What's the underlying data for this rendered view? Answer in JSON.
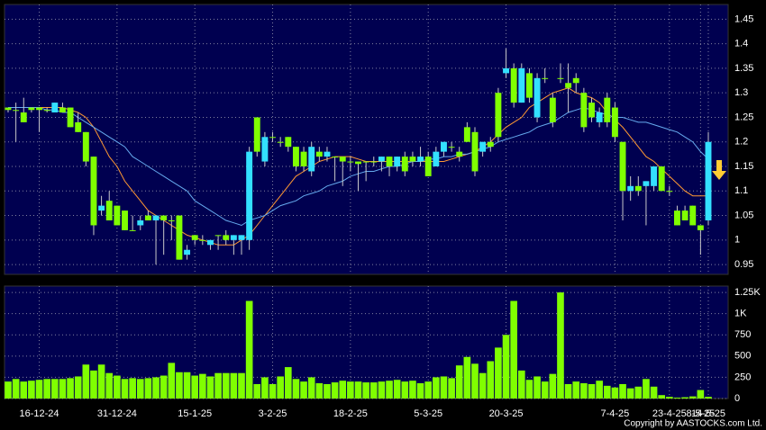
{
  "chart_data": {
    "type": "candlestick",
    "categories": [
      null,
      null,
      null,
      null,
      "16-12-24",
      null,
      null,
      null,
      null,
      null,
      null,
      null,
      null,
      null,
      "31-12-24",
      null,
      null,
      null,
      null,
      null,
      null,
      null,
      null,
      null,
      "15-1-25",
      null,
      null,
      null,
      null,
      null,
      null,
      null,
      null,
      null,
      "3-2-25",
      null,
      null,
      null,
      null,
      null,
      null,
      null,
      null,
      null,
      "18-2-25",
      null,
      null,
      null,
      null,
      null,
      null,
      null,
      null,
      null,
      "5-3-25",
      null,
      null,
      null,
      null,
      null,
      null,
      null,
      null,
      null,
      "20-3-25",
      null,
      null,
      null,
      null,
      null,
      null,
      null,
      null,
      null,
      null,
      null,
      null,
      null,
      "7-4-25",
      null,
      null,
      null,
      null,
      null,
      null,
      "23-4-25",
      null,
      null,
      null,
      "8-5-25",
      "14-5-25"
    ],
    "open": [
      1.27,
      1.265,
      1.26,
      1.27,
      1.27,
      1.265,
      1.26,
      1.27,
      1.27,
      1.24,
      1.22,
      1.17,
      1.06,
      1.08,
      1.07,
      1.06,
      1.02,
      1.03,
      1.05,
      1.04,
      1.05,
      1.04,
      1.05,
      0.97,
      1.01,
      1.0,
      0.99,
      1.01,
      1.01,
      1.0,
      1.0,
      1.0,
      1.25,
      1.16,
      1.21,
      1.2,
      1.21,
      1.19,
      1.18,
      1.14,
      1.18,
      1.17,
      1.17,
      1.17,
      1.16,
      1.16,
      1.16,
      1.16,
      1.16,
      1.17,
      1.15,
      1.17,
      1.17,
      1.16,
      1.17,
      1.15,
      1.18,
      1.19,
      1.18,
      1.23,
      1.22,
      1.18,
      1.2,
      1.3,
      1.34,
      1.35,
      1.28,
      1.34,
      1.25,
      1.33,
      1.29,
      1.33,
      1.32,
      1.33,
      1.3,
      1.28,
      1.24,
      1.29,
      1.27,
      1.2,
      1.1,
      1.11,
      1.11,
      1.11,
      1.15,
      1.1,
      1.06,
      1.06,
      1.07,
      1.03,
      1.04
    ],
    "high": [
      1.27,
      1.28,
      1.29,
      1.27,
      1.27,
      1.27,
      1.28,
      1.28,
      1.27,
      1.26,
      1.22,
      1.17,
      1.09,
      1.1,
      1.07,
      1.06,
      1.05,
      1.05,
      1.06,
      1.05,
      1.05,
      1.05,
      1.05,
      0.99,
      1.01,
      1.01,
      1.0,
      1.01,
      1.02,
      1.01,
      1.01,
      1.19,
      1.25,
      1.22,
      1.22,
      1.21,
      1.21,
      1.19,
      1.19,
      1.2,
      1.19,
      1.19,
      1.17,
      1.17,
      1.17,
      1.16,
      1.16,
      1.17,
      1.17,
      1.17,
      1.17,
      1.18,
      1.18,
      1.19,
      1.18,
      1.19,
      1.2,
      1.2,
      1.19,
      1.24,
      1.23,
      1.2,
      1.21,
      1.31,
      1.39,
      1.36,
      1.36,
      1.35,
      1.34,
      1.35,
      1.3,
      1.36,
      1.36,
      1.34,
      1.31,
      1.29,
      1.27,
      1.3,
      1.28,
      1.2,
      1.13,
      1.13,
      1.12,
      1.15,
      1.15,
      1.11,
      1.07,
      1.07,
      1.07,
      1.03,
      1.22
    ],
    "low": [
      1.26,
      1.2,
      1.24,
      1.26,
      1.22,
      1.26,
      1.26,
      1.26,
      1.23,
      1.22,
      1.15,
      1.01,
      1.05,
      1.04,
      1.03,
      1.02,
      1.02,
      1.02,
      1.04,
      0.95,
      0.97,
      1.0,
      0.96,
      0.96,
      0.99,
      0.99,
      0.98,
      0.98,
      0.99,
      0.97,
      0.97,
      0.98,
      1.17,
      1.15,
      1.2,
      1.19,
      1.18,
      1.14,
      1.14,
      1.13,
      1.16,
      1.16,
      1.12,
      1.11,
      1.14,
      1.1,
      1.12,
      1.15,
      1.14,
      1.13,
      1.14,
      1.13,
      1.15,
      1.15,
      1.13,
      1.15,
      1.17,
      1.18,
      1.16,
      1.2,
      1.13,
      1.17,
      1.18,
      1.2,
      1.33,
      1.27,
      1.28,
      1.28,
      1.24,
      1.32,
      1.23,
      1.32,
      1.26,
      1.3,
      1.22,
      1.24,
      1.23,
      1.23,
      1.2,
      1.04,
      1.08,
      1.09,
      1.03,
      1.1,
      1.1,
      1.09,
      1.03,
      1.04,
      1.03,
      0.97,
      1.03
    ],
    "close": [
      1.265,
      1.265,
      1.24,
      1.265,
      1.265,
      1.265,
      1.28,
      1.26,
      1.23,
      1.22,
      1.16,
      1.03,
      1.07,
      1.04,
      1.03,
      1.02,
      1.02,
      1.04,
      1.04,
      1.05,
      1.04,
      1.04,
      0.96,
      0.98,
      1.0,
      1.0,
      1.0,
      1.01,
      1.0,
      1.01,
      1.01,
      1.18,
      1.18,
      1.21,
      1.21,
      1.2,
      1.19,
      1.15,
      1.15,
      1.19,
      1.17,
      1.18,
      1.17,
      1.16,
      1.16,
      1.155,
      1.16,
      1.16,
      1.17,
      1.15,
      1.17,
      1.14,
      1.16,
      1.17,
      1.13,
      1.18,
      1.2,
      1.19,
      1.17,
      1.2,
      1.14,
      1.2,
      1.19,
      1.21,
      1.35,
      1.28,
      1.35,
      1.29,
      1.33,
      1.33,
      1.24,
      1.33,
      1.31,
      1.32,
      1.23,
      1.25,
      1.26,
      1.24,
      1.21,
      1.1,
      1.11,
      1.1,
      1.12,
      1.15,
      1.1,
      1.1,
      1.03,
      1.04,
      1.03,
      1.02,
      1.2
    ],
    "up_color": "#33e0ff",
    "down_color": "#80ff00",
    "wick_color": "#c8c8c8",
    "series": [
      {
        "color": "#ff9933",
        "values": [
          1.27,
          1.27,
          1.27,
          1.27,
          1.27,
          1.27,
          1.27,
          1.27,
          1.265,
          1.26,
          1.25,
          1.23,
          1.2,
          1.17,
          1.15,
          1.12,
          1.1,
          1.08,
          1.06,
          1.05,
          1.04,
          1.03,
          1.02,
          1.01,
          1.005,
          1.0,
          0.995,
          0.99,
          0.99,
          0.99,
          1.0,
          1.01,
          1.03,
          1.05,
          1.07,
          1.09,
          1.11,
          1.13,
          1.14,
          1.15,
          1.16,
          1.165,
          1.17,
          1.17,
          1.17,
          1.165,
          1.16,
          1.16,
          1.16,
          1.16,
          1.16,
          1.16,
          1.16,
          1.16,
          1.16,
          1.16,
          1.16,
          1.165,
          1.17,
          1.175,
          1.18,
          1.19,
          1.2,
          1.215,
          1.23,
          1.24,
          1.25,
          1.27,
          1.28,
          1.29,
          1.3,
          1.305,
          1.31,
          1.3,
          1.295,
          1.29,
          1.28,
          1.26,
          1.245,
          1.23,
          1.21,
          1.19,
          1.17,
          1.16,
          1.145,
          1.13,
          1.115,
          1.1,
          1.09,
          1.09,
          1.09
        ]
      },
      {
        "color": "#66aaee",
        "values": [
          1.27,
          1.27,
          1.27,
          1.27,
          1.27,
          1.265,
          1.265,
          1.26,
          1.26,
          1.25,
          1.24,
          1.23,
          1.22,
          1.21,
          1.2,
          1.19,
          1.17,
          1.16,
          1.15,
          1.14,
          1.13,
          1.12,
          1.11,
          1.1,
          1.08,
          1.07,
          1.06,
          1.05,
          1.04,
          1.035,
          1.03,
          1.04,
          1.045,
          1.05,
          1.06,
          1.07,
          1.075,
          1.08,
          1.09,
          1.095,
          1.1,
          1.11,
          1.115,
          1.12,
          1.13,
          1.135,
          1.14,
          1.14,
          1.145,
          1.15,
          1.15,
          1.155,
          1.16,
          1.16,
          1.165,
          1.165,
          1.17,
          1.17,
          1.175,
          1.175,
          1.18,
          1.185,
          1.19,
          1.2,
          1.205,
          1.21,
          1.215,
          1.22,
          1.23,
          1.235,
          1.24,
          1.25,
          1.26,
          1.265,
          1.27,
          1.265,
          1.26,
          1.255,
          1.25,
          1.25,
          1.245,
          1.24,
          1.24,
          1.235,
          1.23,
          1.225,
          1.22,
          1.21,
          1.2,
          1.18,
          1.165
        ]
      }
    ],
    "ylim": [
      0.93,
      1.48
    ],
    "yticks": [
      0.95,
      1,
      1.05,
      1.1,
      1.15,
      1.2,
      1.25,
      1.3,
      1.35,
      1.4,
      1.45
    ],
    "volume": [
      200,
      230,
      200,
      210,
      220,
      230,
      230,
      230,
      240,
      260,
      400,
      330,
      400,
      300,
      270,
      230,
      240,
      230,
      240,
      250,
      270,
      420,
      310,
      310,
      270,
      290,
      260,
      300,
      300,
      300,
      300,
      1150,
      170,
      250,
      170,
      260,
      370,
      230,
      200,
      250,
      180,
      170,
      190,
      210,
      200,
      200,
      190,
      190,
      200,
      210,
      220,
      200,
      210,
      180,
      200,
      250,
      260,
      240,
      390,
      490,
      410,
      300,
      440,
      600,
      750,
      1150,
      330,
      220,
      260,
      200,
      290,
      1250,
      170,
      200,
      180,
      170,
      210,
      150,
      130,
      170,
      120,
      140,
      230,
      140,
      40,
      20,
      10,
      15,
      25,
      100,
      20
    ],
    "volume_color": "#80ff00",
    "volume_ylim": [
      0,
      1325
    ],
    "volume_yticks": [
      0,
      250,
      500,
      750,
      {
        "value": 1000,
        "label": "1K"
      },
      {
        "value": 1250,
        "label": "1.25K"
      }
    ],
    "grid": true,
    "copyright": "Copyright by AASTOCKS.com Ltd."
  }
}
